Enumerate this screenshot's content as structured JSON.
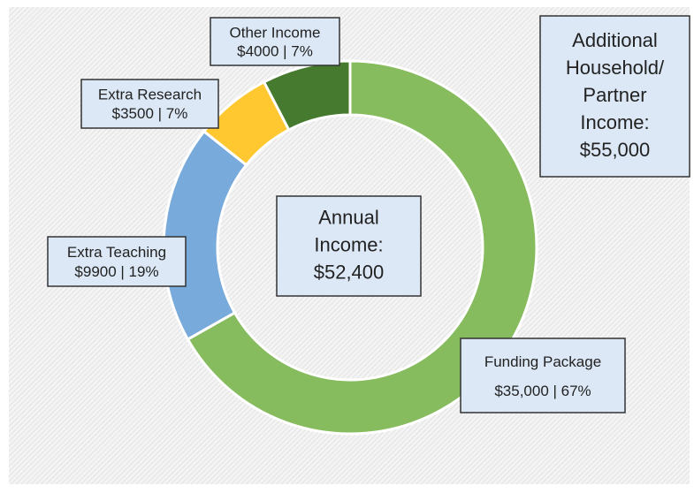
{
  "chart_data": {
    "type": "donut",
    "categories": [
      "Funding Package",
      "Extra Teaching",
      "Extra Research",
      "Other Income"
    ],
    "values": [
      35000,
      9900,
      3500,
      4000
    ],
    "value_labels": [
      "$35,000  |  67%",
      "$9900  |  19%",
      "$3500  |  7%",
      "$4000  |  7%"
    ],
    "colors": [
      "#86bb5e",
      "#78aadc",
      "#ffc730",
      "#467a2e"
    ],
    "center_text": [
      "Annual",
      "Income:",
      "$52,400"
    ],
    "side_text": [
      "Additional",
      "Household/",
      "Partner",
      "Income:",
      "$55,000"
    ]
  }
}
